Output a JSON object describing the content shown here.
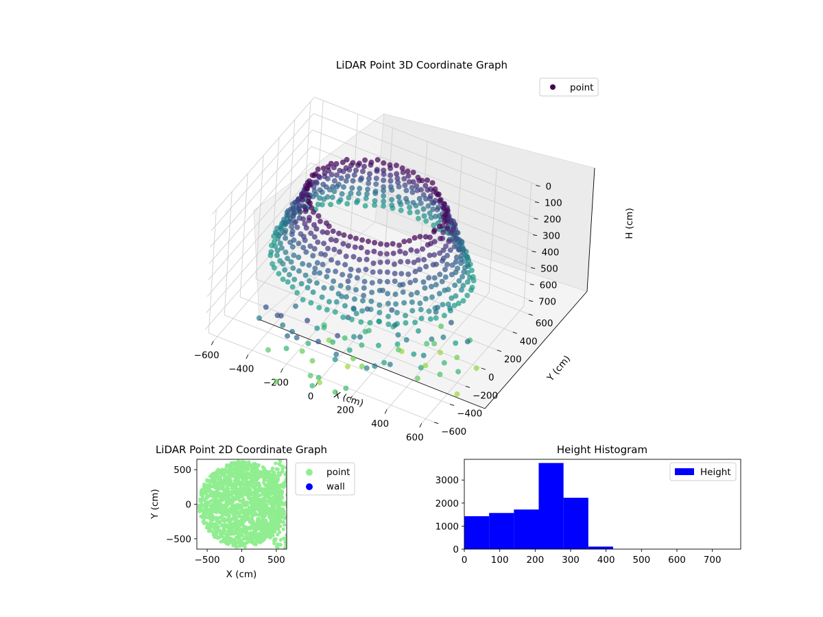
{
  "chart_data": [
    {
      "id": "lidar3d",
      "type": "scatter",
      "title": "LiDAR Point 3D Coordinate Graph",
      "xlabel": "X (cm)",
      "ylabel": "Y (cm)",
      "zlabel": "H (cm)",
      "xlim": [
        -650,
        650
      ],
      "ylim": [
        -650,
        650
      ],
      "zlim": [
        0,
        750
      ],
      "z_axis_inverted": true,
      "xticks": [
        "−600",
        "−400",
        "−200",
        "0",
        "200",
        "400",
        "600"
      ],
      "yticks": [
        "−600",
        "−400",
        "−200",
        "0",
        "200",
        "400",
        "600"
      ],
      "zticks": [
        "0",
        "100",
        "200",
        "300",
        "400",
        "500",
        "600",
        "700"
      ],
      "colormap": "viridis",
      "legend": {
        "position": "top-right",
        "entries": [
          {
            "label": "point",
            "color": "#440154"
          }
        ]
      },
      "series": [
        {
          "name": "point",
          "structure": "dense ring of points around the sensor, radius about 300–650 cm, heights about 0–420 cm, colored by height",
          "ring_radius_range": [
            300,
            650
          ],
          "height_range": [
            0,
            420
          ]
        }
      ]
    },
    {
      "id": "lidar2d",
      "type": "scatter",
      "title": "LiDAR Point 2D Coordinate Graph",
      "xlabel": "X (cm)",
      "ylabel": "Y (cm)",
      "xlim": [
        -650,
        650
      ],
      "ylim": [
        -650,
        650
      ],
      "xticks": [
        "−500",
        "0",
        "500"
      ],
      "yticks": [
        "500",
        "0",
        "−500"
      ],
      "legend": {
        "position": "outside-right",
        "entries": [
          {
            "label": "point",
            "color": "#90ee90"
          },
          {
            "label": "wall",
            "color": "#0000ff"
          }
        ]
      },
      "series": [
        {
          "name": "point",
          "color": "#90ee90",
          "structure": "filled disc of points, radius about 620 cm, plus beams extending to the right edge"
        },
        {
          "name": "wall",
          "color": "#0000ff",
          "values": []
        }
      ]
    },
    {
      "id": "height_hist",
      "type": "bar",
      "title": "Height Histogram",
      "xlim": [
        0,
        780
      ],
      "ylim": [
        0,
        3900
      ],
      "xticks": [
        "0",
        "100",
        "200",
        "300",
        "400",
        "500",
        "600",
        "700"
      ],
      "yticks": [
        "0",
        "1000",
        "2000",
        "3000"
      ],
      "legend": {
        "position": "top-right",
        "entries": [
          {
            "label": "Height",
            "color": "#0000ff"
          }
        ]
      },
      "series": [
        {
          "name": "Height",
          "color": "#0000ff",
          "bin_edges": [
            0,
            70,
            140,
            210,
            280,
            350,
            420,
            490,
            560,
            630,
            700
          ],
          "values": [
            1430,
            1570,
            1720,
            3740,
            2230,
            110,
            5,
            3,
            2,
            1
          ]
        }
      ]
    }
  ]
}
